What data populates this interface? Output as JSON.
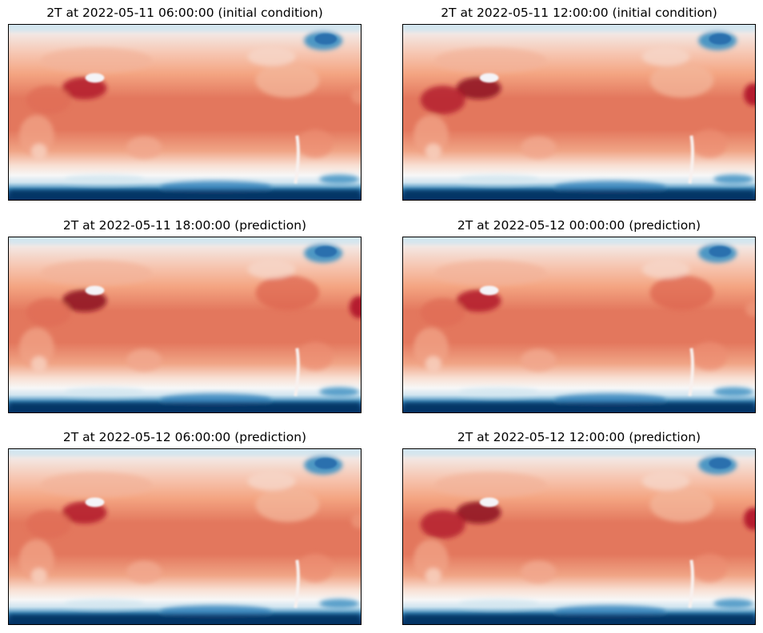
{
  "panels": [
    {
      "title": "2T at 2022-05-11 06:00:00 (initial condition)",
      "variant": 0
    },
    {
      "title": "2T at 2022-05-11 12:00:00 (initial condition)",
      "variant": 1
    },
    {
      "title": "2T at 2022-05-11 18:00:00 (prediction)",
      "variant": 2
    },
    {
      "title": "2T at 2022-05-12 00:00:00 (prediction)",
      "variant": 3
    },
    {
      "title": "2T at 2022-05-12 06:00:00 (prediction)",
      "variant": 4
    },
    {
      "title": "2T at 2022-05-12 12:00:00 (prediction)",
      "variant": 5
    }
  ],
  "colormap": {
    "name": "RdBu_r",
    "cold_dark": "#053061",
    "cold_mid": "#4393c3",
    "cold_light": "#d1e5f0",
    "neutral": "#f7f7f7",
    "warm_light": "#f4a582",
    "warm_mid": "#e3775d",
    "warm_dark": "#b2182b",
    "hot": "#8c0a1c"
  }
}
